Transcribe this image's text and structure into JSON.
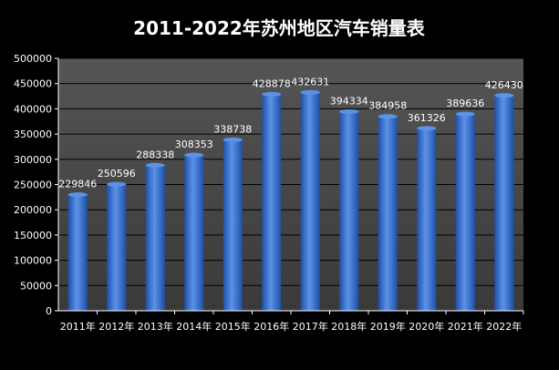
{
  "chart_data": {
    "type": "bar",
    "title": "2011-2022年苏州地区汽车销量表",
    "xlabel": "",
    "ylabel": "",
    "categories": [
      "2011年",
      "2012年",
      "2013年",
      "2014年",
      "2015年",
      "2016年",
      "2017年",
      "2018年",
      "2019年",
      "2020年",
      "2021年",
      "2022年"
    ],
    "values": [
      229846,
      250596,
      288338,
      308353,
      338738,
      428878,
      432631,
      394334,
      384958,
      361326,
      389636,
      426430
    ],
    "data_labels": [
      "229846",
      "250596",
      "288338",
      "308353",
      "338738",
      "428878",
      "432631",
      "394334",
      "384958",
      "361326",
      "389636",
      "426430"
    ],
    "ylim": [
      0,
      500000
    ],
    "yticks": [
      0,
      50000,
      100000,
      150000,
      200000,
      250000,
      300000,
      350000,
      400000,
      450000,
      500000
    ],
    "ytick_labels": [
      "0",
      "50000",
      "100000",
      "150000",
      "200000",
      "250000",
      "300000",
      "350000",
      "400000",
      "450000",
      "500000"
    ],
    "grid": true,
    "legend": "none",
    "colors": {
      "background": "#000000",
      "plot_area_top": "#555555",
      "plot_area_bottom": "#3a3a3a",
      "gridline": "#000000",
      "bar_dark": "#1f4fa8",
      "bar_light": "#5b93e8",
      "text": "#ffffff"
    }
  }
}
